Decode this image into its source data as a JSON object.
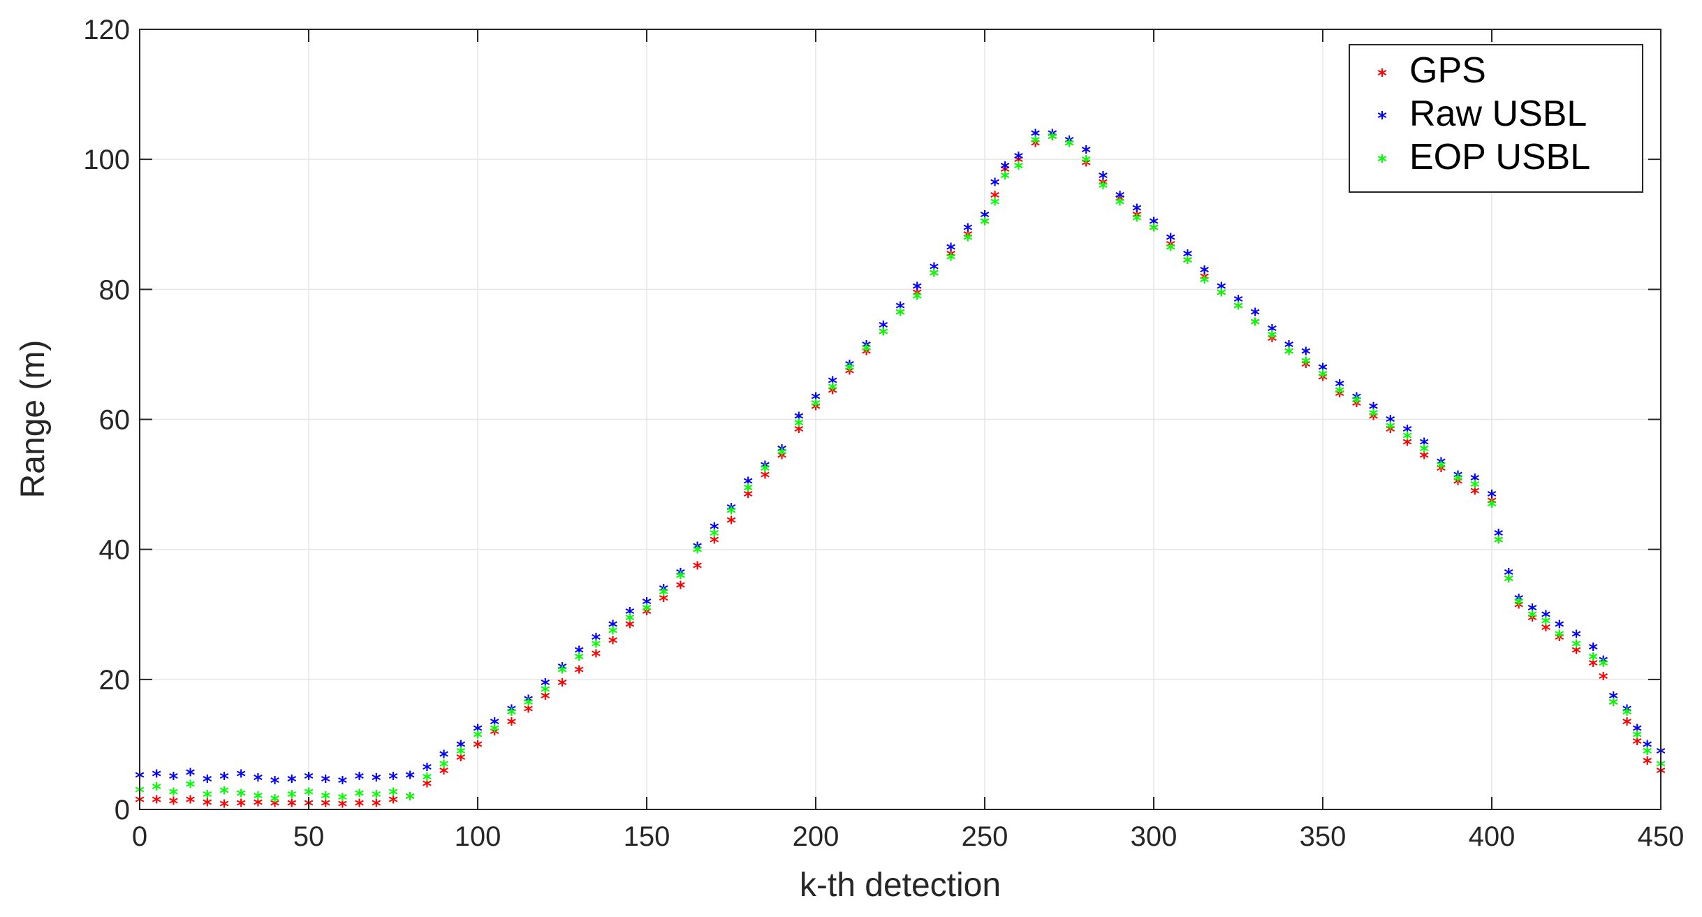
{
  "chart_data": {
    "type": "scatter",
    "xlabel": "k-th detection",
    "ylabel": "Range (m)",
    "xlim": [
      0,
      450
    ],
    "ylim": [
      0,
      120
    ],
    "xticks": [
      0,
      50,
      100,
      150,
      200,
      250,
      300,
      350,
      400,
      450
    ],
    "yticks": [
      0,
      20,
      40,
      60,
      80,
      100,
      120
    ],
    "grid": true,
    "legend_position": "top-right",
    "marker": "*",
    "series": [
      {
        "name": "GPS",
        "color": "#ff0000",
        "points": [
          [
            0,
            1.0
          ],
          [
            5,
            1.0
          ],
          [
            10,
            0.8
          ],
          [
            15,
            1.0
          ],
          [
            20,
            0.6
          ],
          [
            25,
            0.4
          ],
          [
            30,
            0.5
          ],
          [
            35,
            0.6
          ],
          [
            40,
            0.5
          ],
          [
            45,
            0.5
          ],
          [
            50,
            0.5
          ],
          [
            55,
            0.5
          ],
          [
            60,
            0.4
          ],
          [
            65,
            0.5
          ],
          [
            70,
            0.5
          ],
          [
            75,
            1.0
          ],
          [
            80,
            1.5
          ],
          [
            85,
            3.5
          ],
          [
            90,
            5.5
          ],
          [
            95,
            7.5
          ],
          [
            100,
            9.5
          ],
          [
            105,
            11.5
          ],
          [
            110,
            13.0
          ],
          [
            115,
            15.0
          ],
          [
            120,
            17.0
          ],
          [
            125,
            19.0
          ],
          [
            130,
            21.0
          ],
          [
            135,
            23.5
          ],
          [
            140,
            25.5
          ],
          [
            145,
            28.0
          ],
          [
            150,
            30.0
          ],
          [
            155,
            32.0
          ],
          [
            160,
            34.0
          ],
          [
            165,
            37.0
          ],
          [
            170,
            41.0
          ],
          [
            175,
            44.0
          ],
          [
            180,
            48.0
          ],
          [
            185,
            51.0
          ],
          [
            190,
            54.0
          ],
          [
            195,
            58.0
          ],
          [
            200,
            61.5
          ],
          [
            205,
            64.0
          ],
          [
            210,
            67.0
          ],
          [
            215,
            70.0
          ],
          [
            220,
            73.0
          ],
          [
            225,
            76.0
          ],
          [
            230,
            79.0
          ],
          [
            235,
            82.0
          ],
          [
            240,
            85.0
          ],
          [
            245,
            88.0
          ],
          [
            250,
            90.0
          ],
          [
            253,
            94.0
          ],
          [
            256,
            98.0
          ],
          [
            260,
            99.5
          ],
          [
            265,
            102.0
          ],
          [
            270,
            103.0
          ],
          [
            275,
            102.0
          ],
          [
            280,
            99.0
          ],
          [
            285,
            96.0
          ],
          [
            290,
            93.5
          ],
          [
            295,
            91.0
          ],
          [
            300,
            89.0
          ],
          [
            305,
            86.5
          ],
          [
            310,
            84.0
          ],
          [
            315,
            81.5
          ],
          [
            320,
            79.0
          ],
          [
            325,
            77.0
          ],
          [
            330,
            74.5
          ],
          [
            335,
            72.0
          ],
          [
            340,
            70.0
          ],
          [
            345,
            68.0
          ],
          [
            350,
            66.0
          ],
          [
            355,
            63.5
          ],
          [
            360,
            62.0
          ],
          [
            365,
            60.0
          ],
          [
            370,
            58.0
          ],
          [
            375,
            56.0
          ],
          [
            380,
            54.0
          ],
          [
            385,
            52.0
          ],
          [
            390,
            50.0
          ],
          [
            395,
            48.5
          ],
          [
            400,
            47.0
          ],
          [
            402,
            41.0
          ],
          [
            405,
            35.0
          ],
          [
            408,
            31.0
          ],
          [
            412,
            29.0
          ],
          [
            416,
            27.5
          ],
          [
            420,
            26.0
          ],
          [
            425,
            24.0
          ],
          [
            430,
            22.0
          ],
          [
            433,
            20.0
          ],
          [
            436,
            16.0
          ],
          [
            440,
            13.0
          ],
          [
            443,
            10.0
          ],
          [
            446,
            7.0
          ],
          [
            450,
            5.5
          ]
        ]
      },
      {
        "name": "Raw USBL",
        "color": "#0000ff",
        "points": [
          [
            0,
            4.8
          ],
          [
            5,
            5.0
          ],
          [
            10,
            4.6
          ],
          [
            15,
            5.2
          ],
          [
            20,
            4.2
          ],
          [
            25,
            4.6
          ],
          [
            30,
            5.0
          ],
          [
            35,
            4.4
          ],
          [
            40,
            4.0
          ],
          [
            45,
            4.2
          ],
          [
            50,
            4.6
          ],
          [
            55,
            4.2
          ],
          [
            60,
            4.0
          ],
          [
            65,
            4.6
          ],
          [
            70,
            4.4
          ],
          [
            75,
            4.6
          ],
          [
            80,
            4.8
          ],
          [
            85,
            6.0
          ],
          [
            90,
            8.0
          ],
          [
            95,
            9.5
          ],
          [
            100,
            12.0
          ],
          [
            105,
            13.0
          ],
          [
            110,
            15.0
          ],
          [
            115,
            16.5
          ],
          [
            120,
            19.0
          ],
          [
            125,
            21.5
          ],
          [
            130,
            24.0
          ],
          [
            135,
            26.0
          ],
          [
            140,
            28.0
          ],
          [
            145,
            30.0
          ],
          [
            150,
            31.5
          ],
          [
            155,
            33.5
          ],
          [
            160,
            36.0
          ],
          [
            165,
            40.0
          ],
          [
            170,
            43.0
          ],
          [
            175,
            46.0
          ],
          [
            180,
            50.0
          ],
          [
            185,
            52.5
          ],
          [
            190,
            55.0
          ],
          [
            195,
            60.0
          ],
          [
            200,
            63.0
          ],
          [
            205,
            65.5
          ],
          [
            210,
            68.0
          ],
          [
            215,
            71.0
          ],
          [
            220,
            74.0
          ],
          [
            225,
            77.0
          ],
          [
            230,
            80.0
          ],
          [
            235,
            83.0
          ],
          [
            240,
            86.0
          ],
          [
            245,
            89.0
          ],
          [
            250,
            91.0
          ],
          [
            253,
            96.0
          ],
          [
            256,
            98.5
          ],
          [
            260,
            100.0
          ],
          [
            265,
            103.5
          ],
          [
            270,
            103.5
          ],
          [
            275,
            102.5
          ],
          [
            280,
            101.0
          ],
          [
            285,
            97.0
          ],
          [
            290,
            94.0
          ],
          [
            295,
            92.0
          ],
          [
            300,
            90.0
          ],
          [
            305,
            87.5
          ],
          [
            310,
            85.0
          ],
          [
            315,
            82.5
          ],
          [
            320,
            80.0
          ],
          [
            325,
            78.0
          ],
          [
            330,
            76.0
          ],
          [
            335,
            73.5
          ],
          [
            340,
            71.0
          ],
          [
            345,
            70.0
          ],
          [
            350,
            67.5
          ],
          [
            355,
            65.0
          ],
          [
            360,
            63.0
          ],
          [
            365,
            61.5
          ],
          [
            370,
            59.5
          ],
          [
            375,
            58.0
          ],
          [
            380,
            56.0
          ],
          [
            385,
            53.0
          ],
          [
            390,
            51.0
          ],
          [
            395,
            50.5
          ],
          [
            400,
            48.0
          ],
          [
            402,
            42.0
          ],
          [
            405,
            36.0
          ],
          [
            408,
            32.0
          ],
          [
            412,
            30.5
          ],
          [
            416,
            29.5
          ],
          [
            420,
            28.0
          ],
          [
            425,
            26.5
          ],
          [
            430,
            24.5
          ],
          [
            433,
            22.5
          ],
          [
            436,
            17.0
          ],
          [
            440,
            15.0
          ],
          [
            443,
            12.0
          ],
          [
            446,
            9.5
          ],
          [
            450,
            8.5
          ]
        ]
      },
      {
        "name": "EOP USBL",
        "color": "#00ff00",
        "points": [
          [
            0,
            2.5
          ],
          [
            5,
            3.0
          ],
          [
            10,
            2.2
          ],
          [
            15,
            3.4
          ],
          [
            20,
            1.8
          ],
          [
            25,
            2.4
          ],
          [
            30,
            2.0
          ],
          [
            35,
            1.6
          ],
          [
            40,
            1.2
          ],
          [
            45,
            1.8
          ],
          [
            50,
            2.2
          ],
          [
            55,
            1.6
          ],
          [
            60,
            1.4
          ],
          [
            65,
            2.0
          ],
          [
            70,
            1.8
          ],
          [
            75,
            2.2
          ],
          [
            80,
            1.5
          ],
          [
            85,
            4.5
          ],
          [
            90,
            6.5
          ],
          [
            95,
            8.5
          ],
          [
            100,
            11.0
          ],
          [
            105,
            12.0
          ],
          [
            110,
            14.5
          ],
          [
            115,
            16.0
          ],
          [
            120,
            18.0
          ],
          [
            125,
            21.0
          ],
          [
            130,
            23.0
          ],
          [
            135,
            25.0
          ],
          [
            140,
            27.0
          ],
          [
            145,
            29.0
          ],
          [
            150,
            30.5
          ],
          [
            155,
            33.0
          ],
          [
            160,
            35.5
          ],
          [
            165,
            39.5
          ],
          [
            170,
            42.0
          ],
          [
            175,
            45.5
          ],
          [
            180,
            49.0
          ],
          [
            185,
            52.0
          ],
          [
            190,
            54.5
          ],
          [
            195,
            59.0
          ],
          [
            200,
            62.0
          ],
          [
            205,
            64.5
          ],
          [
            210,
            67.5
          ],
          [
            215,
            70.5
          ],
          [
            220,
            73.0
          ],
          [
            225,
            76.0
          ],
          [
            230,
            78.5
          ],
          [
            235,
            82.0
          ],
          [
            240,
            84.5
          ],
          [
            245,
            87.5
          ],
          [
            250,
            90.0
          ],
          [
            253,
            93.0
          ],
          [
            256,
            97.0
          ],
          [
            260,
            98.5
          ],
          [
            265,
            102.5
          ],
          [
            270,
            103.0
          ],
          [
            275,
            102.0
          ],
          [
            280,
            99.5
          ],
          [
            285,
            95.5
          ],
          [
            290,
            93.0
          ],
          [
            295,
            90.5
          ],
          [
            300,
            89.0
          ],
          [
            305,
            86.0
          ],
          [
            310,
            84.0
          ],
          [
            315,
            81.0
          ],
          [
            320,
            79.0
          ],
          [
            325,
            77.0
          ],
          [
            330,
            74.5
          ],
          [
            335,
            72.5
          ],
          [
            340,
            70.0
          ],
          [
            345,
            68.5
          ],
          [
            350,
            66.5
          ],
          [
            355,
            64.0
          ],
          [
            360,
            62.5
          ],
          [
            365,
            60.5
          ],
          [
            370,
            58.5
          ],
          [
            375,
            57.0
          ],
          [
            380,
            55.0
          ],
          [
            385,
            52.5
          ],
          [
            390,
            50.5
          ],
          [
            395,
            49.5
          ],
          [
            400,
            46.5
          ],
          [
            402,
            41.0
          ],
          [
            405,
            35.0
          ],
          [
            408,
            31.5
          ],
          [
            412,
            29.5
          ],
          [
            416,
            28.5
          ],
          [
            420,
            26.5
          ],
          [
            425,
            25.0
          ],
          [
            430,
            23.0
          ],
          [
            433,
            22.0
          ],
          [
            436,
            16.0
          ],
          [
            440,
            14.5
          ],
          [
            443,
            11.0
          ],
          [
            446,
            8.5
          ],
          [
            450,
            6.5
          ]
        ]
      }
    ]
  }
}
